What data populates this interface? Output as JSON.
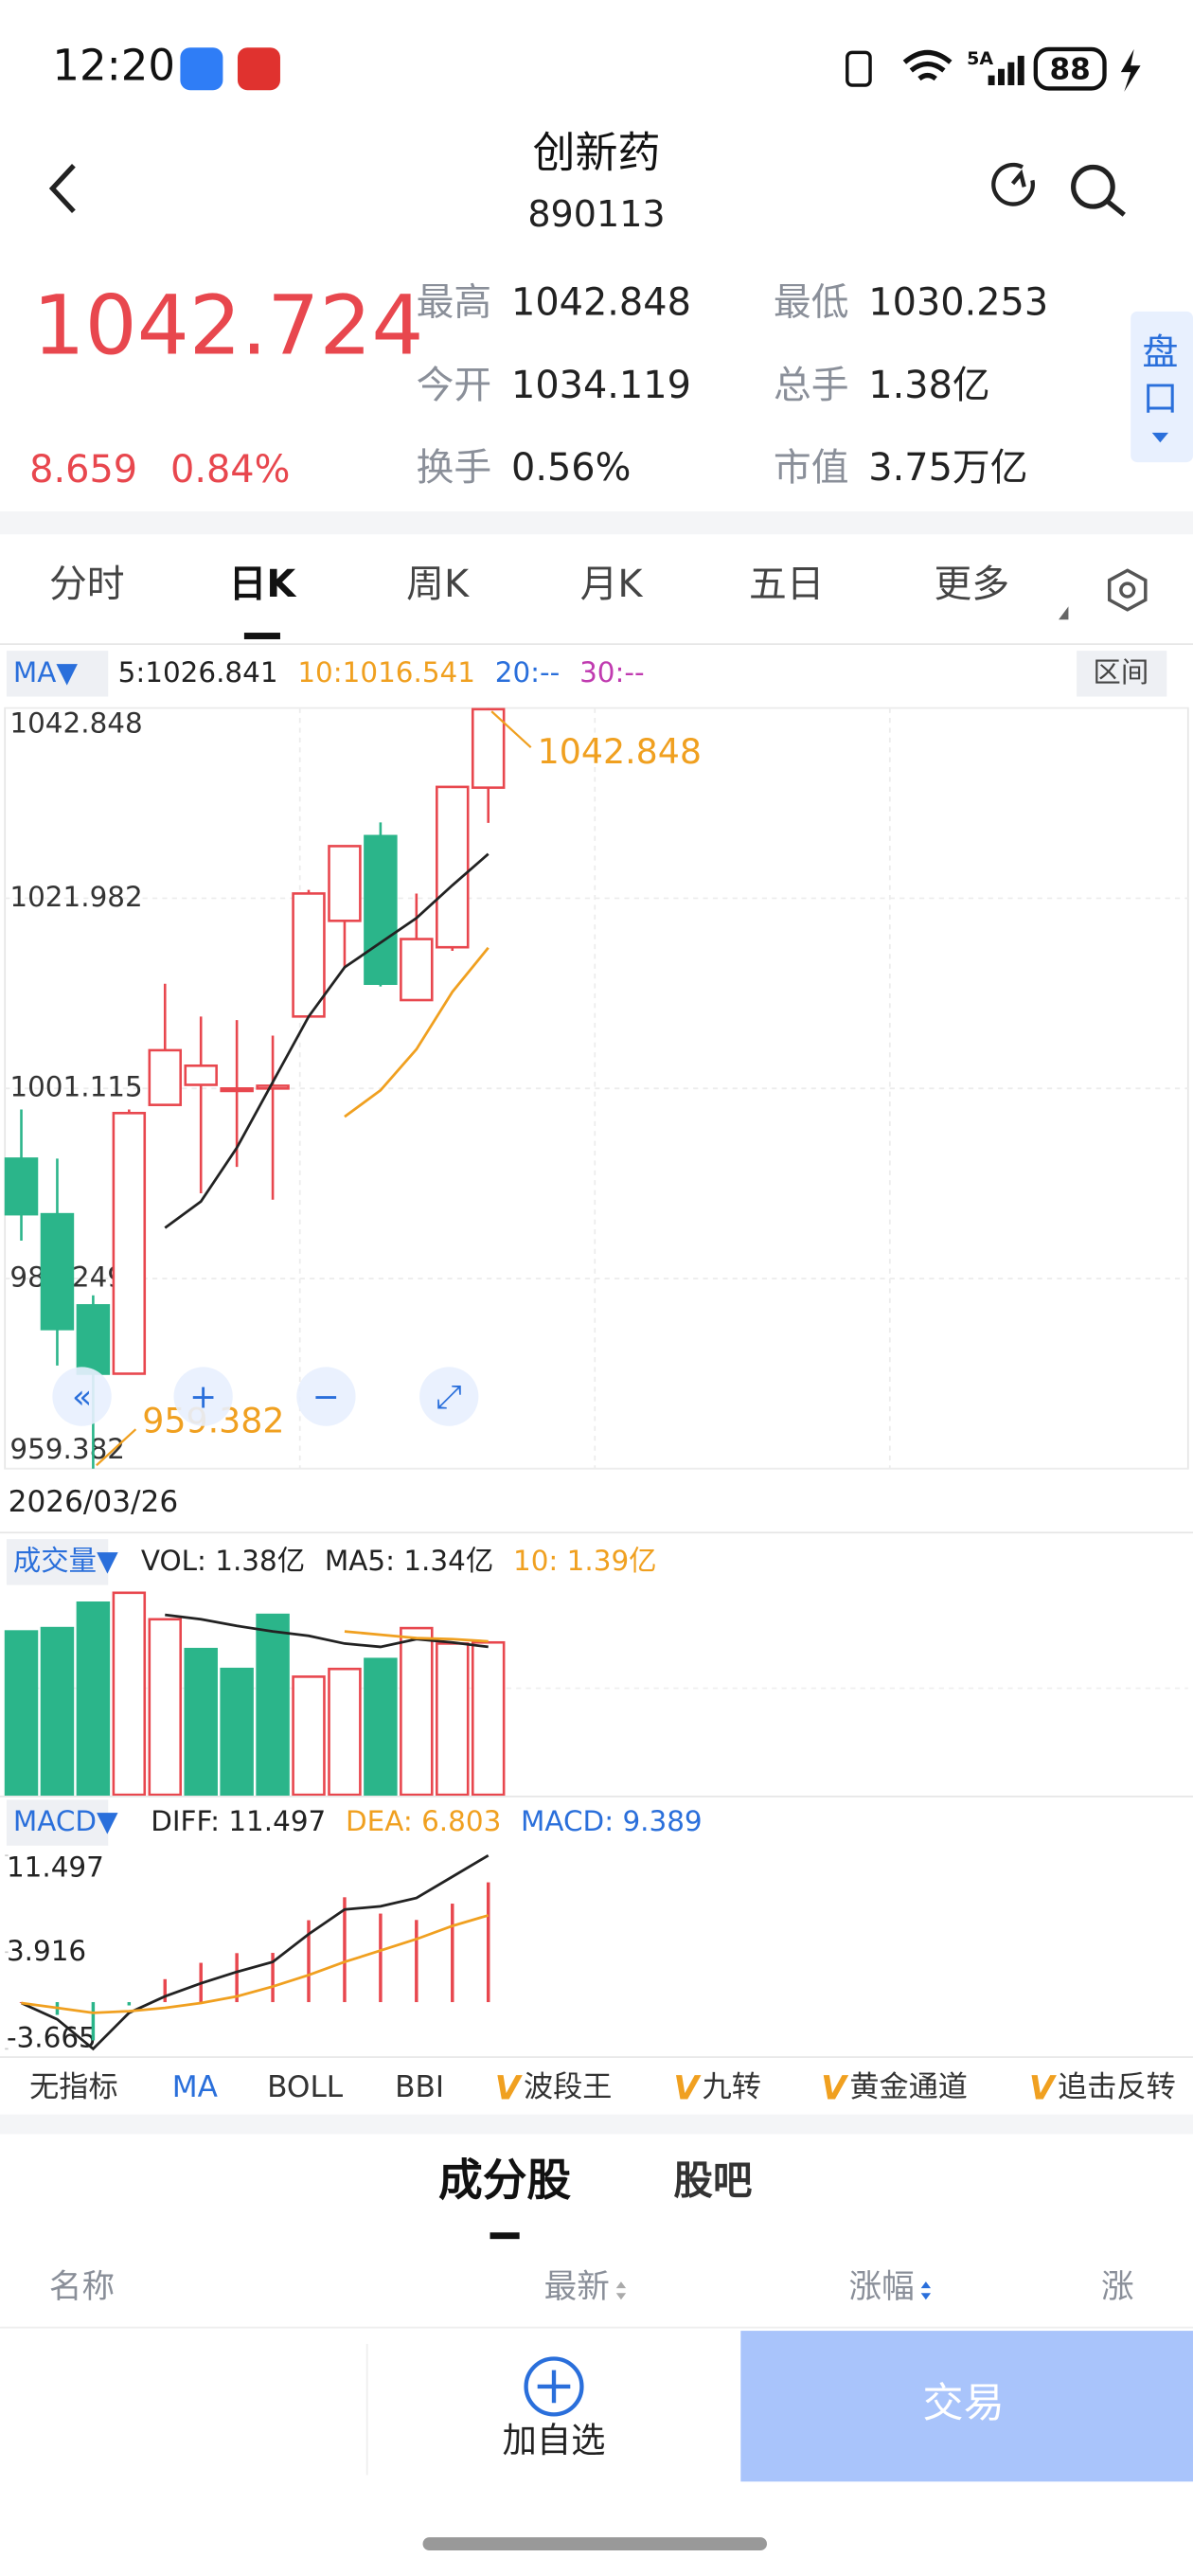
{
  "status_bar": {
    "time": "12:20",
    "network": "5A",
    "battery": "88"
  },
  "header": {
    "title": "创新药",
    "code": "890113"
  },
  "quote": {
    "price": "1042.724",
    "change": "8.659",
    "change_pct": "0.84%",
    "stats": [
      {
        "label": "最高",
        "value": "1042.848"
      },
      {
        "label": "最低",
        "value": "1030.253"
      },
      {
        "label": "今开",
        "value": "1034.119"
      },
      {
        "label": "总手",
        "value": "1.38亿"
      },
      {
        "label": "换手",
        "value": "0.56%"
      },
      {
        "label": "市值",
        "value": "3.75万亿"
      }
    ],
    "side_tab": "盘口"
  },
  "tabs": [
    "分时",
    "日K",
    "周K",
    "月K",
    "五日",
    "更多"
  ],
  "chart_legend": {
    "selector": "MA▼",
    "items": [
      "5:1026.841",
      "10:1016.541",
      "20:--",
      "30:--"
    ],
    "range_button": "区间"
  },
  "date": "2026/03/26",
  "chart_data": [
    {
      "type": "candlestick",
      "open": [
        993.4,
        987.3,
        977.3,
        969.8,
        999.3,
        1001.5,
        1001.1,
        1001.1,
        1009.0,
        1019.5,
        1028.8,
        1010.8,
        1016.6,
        1034.119
      ],
      "close": [
        987.3,
        974.7,
        969.8,
        998.4,
        1005.3,
        1003.6,
        1001.1,
        1001.4,
        1022.5,
        1027.7,
        1012.6,
        1017.5,
        1034.2,
        1042.724
      ],
      "high": [
        998.8,
        993.4,
        978.4,
        998.8,
        1012.6,
        1009.0,
        1008.6,
        1006.9,
        1022.9,
        1027.7,
        1030.3,
        1022.5,
        1034.2,
        1042.848
      ],
      "low": [
        984.4,
        970.7,
        959.382,
        969.8,
        999.3,
        989.6,
        992.5,
        988.9,
        1009.0,
        1014.4,
        1012.3,
        1010.8,
        1016.2,
        1030.253
      ],
      "series": [
        {
          "name": "MA5",
          "color": "#222222",
          "values": [
            null,
            null,
            null,
            null,
            985.8,
            988.7,
            994.6,
            1001.8,
            1009.0,
            1014.4,
            1017.1,
            1019.8,
            1023.4,
            1026.841
          ]
        },
        {
          "name": "MA10",
          "color": "#f0a020",
          "values": [
            null,
            null,
            null,
            null,
            null,
            null,
            null,
            null,
            null,
            998.0,
            1000.9,
            1005.4,
            1011.7,
            1016.541
          ]
        }
      ],
      "up_color": "#e8474e",
      "down_color": "#2bb58a",
      "ylim": [
        959.382,
        1042.848
      ],
      "yticks": [
        1042.848,
        1021.982,
        1001.115,
        980.249,
        959.382
      ],
      "annotations": [
        "1042.848",
        "959.382"
      ]
    },
    {
      "type": "bar",
      "legend": {
        "selector": "成交量▼",
        "items": [
          "VOL: 1.38亿",
          "MA5: 1.34亿",
          "10: 1.39亿"
        ]
      },
      "values": [
        1.48,
        1.51,
        1.74,
        1.83,
        1.59,
        1.32,
        1.14,
        1.63,
        1.07,
        1.14,
        1.23,
        1.51,
        1.37,
        1.38
      ],
      "bar_colors": [
        "#2bb58a",
        "#2bb58a",
        "#2bb58a",
        "#e8474e",
        "#e8474e",
        "#2bb58a",
        "#2bb58a",
        "#2bb58a",
        "#e8474e",
        "#e8474e",
        "#2bb58a",
        "#e8474e",
        "#e8474e",
        "#e8474e"
      ],
      "series": [
        {
          "name": "MA5",
          "color": "#222222",
          "values": [
            null,
            null,
            null,
            null,
            1.63,
            1.59,
            1.53,
            1.48,
            1.44,
            1.37,
            1.34,
            1.41,
            1.38,
            1.34
          ]
        },
        {
          "name": "MA10",
          "color": "#f0a020",
          "values": [
            null,
            null,
            null,
            null,
            null,
            null,
            null,
            null,
            null,
            1.48,
            1.45,
            1.42,
            1.41,
            1.39
          ]
        }
      ],
      "ylim": [
        0,
        1.93
      ]
    },
    {
      "type": "macd",
      "legend": {
        "selector": "MACD▼",
        "items": [
          "DIFF: 11.497",
          "DEA: 6.803",
          "MACD: 9.389"
        ]
      },
      "macd": [
        0,
        -1.0,
        -3.0,
        -0.26,
        1.8,
        3.08,
        3.84,
        3.86,
        6.42,
        8.22,
        6.94,
        6.44,
        7.72,
        9.389
      ],
      "series": [
        {
          "name": "DIFF",
          "color": "#222222",
          "values": [
            -0.07,
            -1.35,
            -3.665,
            -0.84,
            0.45,
            1.47,
            2.37,
            3.15,
            5.33,
            7.26,
            7.51,
            8.16,
            9.83,
            11.497
          ]
        },
        {
          "name": "DEA",
          "color": "#f0a020",
          "values": [
            -0.07,
            -0.45,
            -0.84,
            -0.71,
            -0.45,
            -0.07,
            0.45,
            1.22,
            2.12,
            3.15,
            4.04,
            4.94,
            5.97,
            6.803
          ]
        }
      ],
      "ylim": [
        -3.665,
        11.497
      ],
      "yticks": [
        11.497,
        3.916,
        -3.665
      ]
    }
  ],
  "indicators": [
    {
      "badge": "",
      "label": "无指标"
    },
    {
      "badge": "",
      "label": "MA"
    },
    {
      "badge": "",
      "label": "BOLL"
    },
    {
      "badge": "",
      "label": "BBI"
    },
    {
      "badge": "V",
      "label": "波段王"
    },
    {
      "badge": "V",
      "label": "九转"
    },
    {
      "badge": "V",
      "label": "黄金通道"
    },
    {
      "badge": "V",
      "label": "追击反转"
    }
  ],
  "section_tabs": [
    "成分股",
    "股吧"
  ],
  "table_header": [
    "名称",
    "最新",
    "涨幅",
    "涨"
  ],
  "bottom_bar": {
    "watch": "加自选",
    "trade": "交易"
  }
}
